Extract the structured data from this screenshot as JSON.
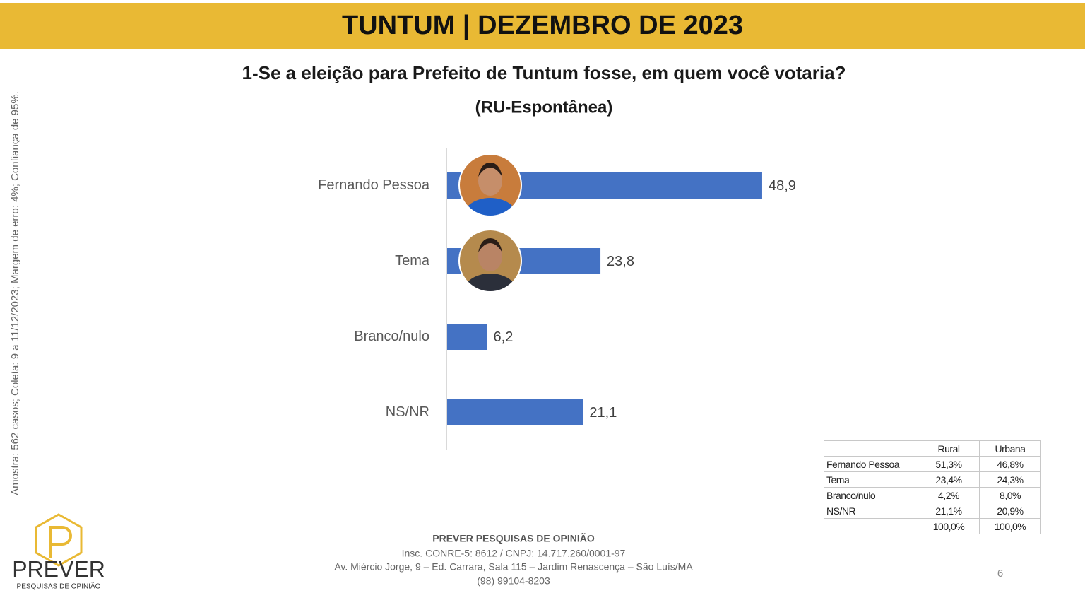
{
  "header": {
    "title": "TUNTUM | DEZEMBRO DE 2023"
  },
  "side_note": "Amostra: 562 casos; Coleta: 9 a 11/12/2023; Margem de erro: 4%; Confiança de 95%.",
  "chart_data": {
    "type": "hbar",
    "title": "1-Se a eleição para Prefeito de Tuntum fosse, em quem você votaria?",
    "subtitle": "(RU-Espontânea)",
    "categories": [
      "Fernando Pessoa",
      "Tema",
      "Branco/nulo",
      "NS/NR"
    ],
    "values": [
      48.9,
      23.8,
      6.2,
      21.1
    ],
    "value_labels": [
      "48,9",
      "23,8",
      "6,2",
      "21,1"
    ],
    "color": "#4472c4"
  },
  "table": {
    "columns": [
      "Rural",
      "Urbana"
    ],
    "rows": [
      [
        "Fernando Pessoa",
        "51,3%",
        "46,8%"
      ],
      [
        "Tema",
        "23,4%",
        "24,3%"
      ],
      [
        "Branco/nulo",
        "4,2%",
        "8,0%"
      ],
      [
        "NS/NR",
        "21,1%",
        "20,9%"
      ]
    ],
    "totals": [
      "100,0%",
      "100,0%"
    ]
  },
  "footer": {
    "company": "PREVER PESQUISAS DE OPINIÃO",
    "lines": [
      "Insc. CONRE-5: 8612 / CNPJ: 14.717.260/0001-97",
      "Av. Miércio Jorge, 9 – Ed. Carrara, Sala 115 – Jardim Renascença – São Luís/MA",
      "(98) 99104-8203"
    ],
    "page": "6"
  },
  "logo": {
    "name": "PREVER",
    "tagline": "PESQUISAS DE OPINIÃO"
  }
}
